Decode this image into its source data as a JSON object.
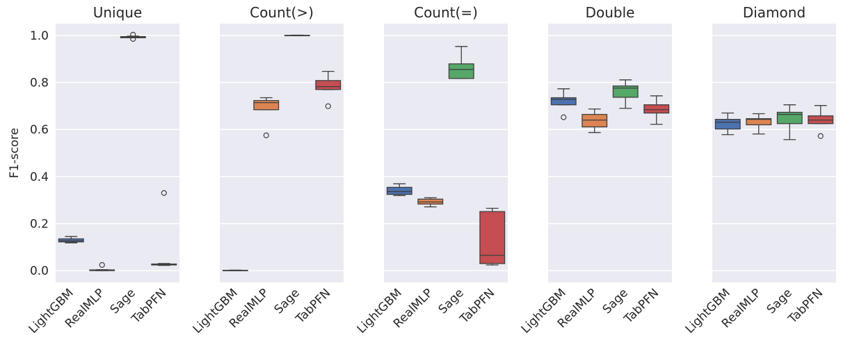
{
  "chart_data": [
    {
      "type": "box",
      "title": "Unique",
      "ylabel": "F1-score",
      "show_ytick_labels": true,
      "categories": [
        "LightGBM",
        "RealMLP",
        "Sage",
        "TabPFN"
      ],
      "colors": [
        "#4c72b0",
        "#dd8452",
        "#55a868",
        "#c44e52"
      ],
      "ylim": [
        -0.05,
        1.05
      ],
      "yticks": [
        {
          "value": 0,
          "label": "0.0"
        },
        0.2,
        0.4,
        0.6,
        0.8,
        {
          "value": 1,
          "label": "1.0"
        }
      ],
      "grid": true,
      "boxes": [
        {
          "whislo": 0.118,
          "q1": 0.122,
          "med": 0.127,
          "q3": 0.135,
          "whishi": 0.145,
          "fliers": []
        },
        {
          "whislo": 0.0,
          "q1": 0.0,
          "med": 0.001,
          "q3": 0.003,
          "whishi": 0.004,
          "fliers": [
            0.024
          ]
        },
        {
          "whislo": 0.99,
          "q1": 0.99,
          "med": 0.993,
          "q3": 0.995,
          "whishi": 0.997,
          "fliers": [
            1.003,
            0.985
          ]
        },
        {
          "whislo": 0.022,
          "q1": 0.024,
          "med": 0.026,
          "q3": 0.028,
          "whishi": 0.03,
          "fliers": [
            0.33
          ]
        }
      ]
    },
    {
      "type": "box",
      "title": "Count(>)",
      "show_ytick_labels": false,
      "categories": [
        "LightGBM",
        "RealMLP",
        "Sage",
        "TabPFN"
      ],
      "colors": [
        "#4c72b0",
        "#dd8452",
        "#55a868",
        "#c44e52"
      ],
      "ylim": [
        -0.05,
        1.05
      ],
      "yticks": [
        0,
        0.2,
        0.4,
        0.6,
        0.8,
        1
      ],
      "grid": true,
      "boxes": [
        {
          "whislo": 0.0,
          "q1": 0.0,
          "med": 0.001,
          "q3": 0.001,
          "whishi": 0.002,
          "fliers": []
        },
        {
          "whislo": 0.684,
          "q1": 0.684,
          "med": 0.714,
          "q3": 0.723,
          "whishi": 0.735,
          "fliers": [
            0.575
          ]
        },
        {
          "whislo": 0.999,
          "q1": 0.999,
          "med": 1.0,
          "q3": 1.0,
          "whishi": 1.001,
          "fliers": []
        },
        {
          "whislo": 0.77,
          "q1": 0.77,
          "med": 0.782,
          "q3": 0.808,
          "whishi": 0.847,
          "fliers": [
            0.699
          ]
        }
      ]
    },
    {
      "type": "box",
      "title": "Count(=)",
      "show_ytick_labels": false,
      "categories": [
        "LightGBM",
        "RealMLP",
        "Sage",
        "TabPFN"
      ],
      "colors": [
        "#4c72b0",
        "#dd8452",
        "#55a868",
        "#c44e52"
      ],
      "ylim": [
        -0.05,
        1.05
      ],
      "yticks": [
        0,
        0.2,
        0.4,
        0.6,
        0.8,
        1
      ],
      "grid": true,
      "boxes": [
        {
          "whislo": 0.319,
          "q1": 0.324,
          "med": 0.336,
          "q3": 0.354,
          "whishi": 0.369,
          "fliers": []
        },
        {
          "whislo": 0.271,
          "q1": 0.283,
          "med": 0.292,
          "q3": 0.304,
          "whishi": 0.31,
          "fliers": []
        },
        {
          "whislo": 0.817,
          "q1": 0.817,
          "med": 0.855,
          "q3": 0.879,
          "whishi": 0.953,
          "fliers": []
        },
        {
          "whislo": 0.024,
          "q1": 0.03,
          "med": 0.065,
          "q3": 0.251,
          "whishi": 0.265,
          "fliers": []
        }
      ]
    },
    {
      "type": "box",
      "title": "Double",
      "show_ytick_labels": false,
      "categories": [
        "LightGBM",
        "RealMLP",
        "Sage",
        "TabPFN"
      ],
      "colors": [
        "#4c72b0",
        "#dd8452",
        "#55a868",
        "#c44e52"
      ],
      "ylim": [
        -0.05,
        1.05
      ],
      "yticks": [
        0,
        0.2,
        0.4,
        0.6,
        0.8,
        1
      ],
      "grid": true,
      "boxes": [
        {
          "whislo": 0.705,
          "q1": 0.705,
          "med": 0.728,
          "q3": 0.735,
          "whishi": 0.773,
          "fliers": [
            0.652
          ]
        },
        {
          "whislo": 0.587,
          "q1": 0.611,
          "med": 0.64,
          "q3": 0.664,
          "whishi": 0.687,
          "fliers": []
        },
        {
          "whislo": 0.69,
          "q1": 0.737,
          "med": 0.776,
          "q3": 0.785,
          "whishi": 0.811,
          "fliers": []
        },
        {
          "whislo": 0.622,
          "q1": 0.67,
          "med": 0.684,
          "q3": 0.705,
          "whishi": 0.743,
          "fliers": []
        }
      ]
    },
    {
      "type": "box",
      "title": "Diamond",
      "show_ytick_labels": false,
      "categories": [
        "LightGBM",
        "RealMLP",
        "Sage",
        "TabPFN"
      ],
      "colors": [
        "#4c72b0",
        "#dd8452",
        "#55a868",
        "#c44e52"
      ],
      "ylim": [
        -0.05,
        1.05
      ],
      "yticks": [
        0,
        0.2,
        0.4,
        0.6,
        0.8,
        1
      ],
      "grid": true,
      "boxes": [
        {
          "whislo": 0.578,
          "q1": 0.602,
          "med": 0.631,
          "q3": 0.643,
          "whishi": 0.67,
          "fliers": []
        },
        {
          "whislo": 0.581,
          "q1": 0.62,
          "med": 0.643,
          "q3": 0.646,
          "whishi": 0.667,
          "fliers": []
        },
        {
          "whislo": 0.557,
          "q1": 0.625,
          "med": 0.664,
          "q3": 0.673,
          "whishi": 0.705,
          "fliers": []
        },
        {
          "whislo": 0.625,
          "q1": 0.625,
          "med": 0.64,
          "q3": 0.658,
          "whishi": 0.702,
          "fliers": [
            0.572
          ]
        }
      ]
    }
  ]
}
